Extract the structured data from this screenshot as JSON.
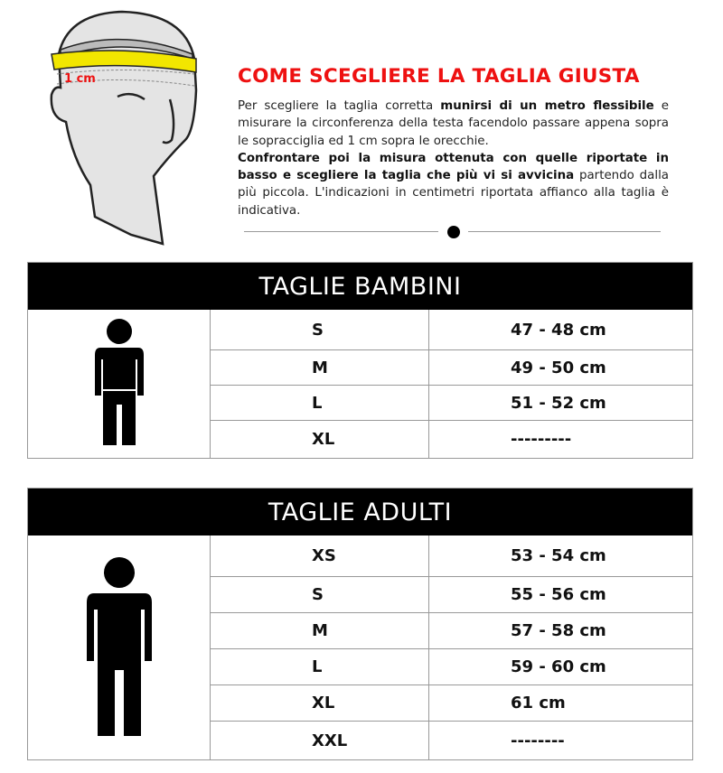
{
  "illustration": {
    "label": "1 cm",
    "tape_color": "#f2e600",
    "label_color": "#ee1111"
  },
  "guide": {
    "title": "COME SCEGLIERE LA TAGLIA GIUSTA",
    "p1_a": "Per scegliere la taglia corretta ",
    "p1_b": "munirsi di un metro flessibile",
    "p1_c": " e misurare la circonferenza della testa facendolo passare appena sopra le sopracciglia ed 1 cm sopra le orecchie.",
    "p2_a": "Confrontare poi la misura ottenuta con quelle riportate in basso e scegliere la taglia che più vi si avvicina",
    "p2_b": " partendo dalla più piccola. L'indicazioni in centimetri riportata affianco alla taglia è indicativa."
  },
  "kids": {
    "title": "TAGLIE BAMBINI",
    "rows": [
      {
        "size": "S",
        "value": "47 - 48 cm"
      },
      {
        "size": "M",
        "value": "49 - 50 cm"
      },
      {
        "size": "L",
        "value": "51 - 52 cm"
      },
      {
        "size": "XL",
        "value": "---------"
      }
    ]
  },
  "adults": {
    "title": "TAGLIE ADULTI",
    "rows": [
      {
        "size": "XS",
        "value": "53 - 54 cm"
      },
      {
        "size": "S",
        "value": "55 - 56 cm"
      },
      {
        "size": "M",
        "value": "57 - 58 cm"
      },
      {
        "size": "L",
        "value": "59 - 60 cm"
      },
      {
        "size": "XL",
        "value": "61 cm"
      },
      {
        "size": "XXL",
        "value": "--------"
      }
    ]
  }
}
